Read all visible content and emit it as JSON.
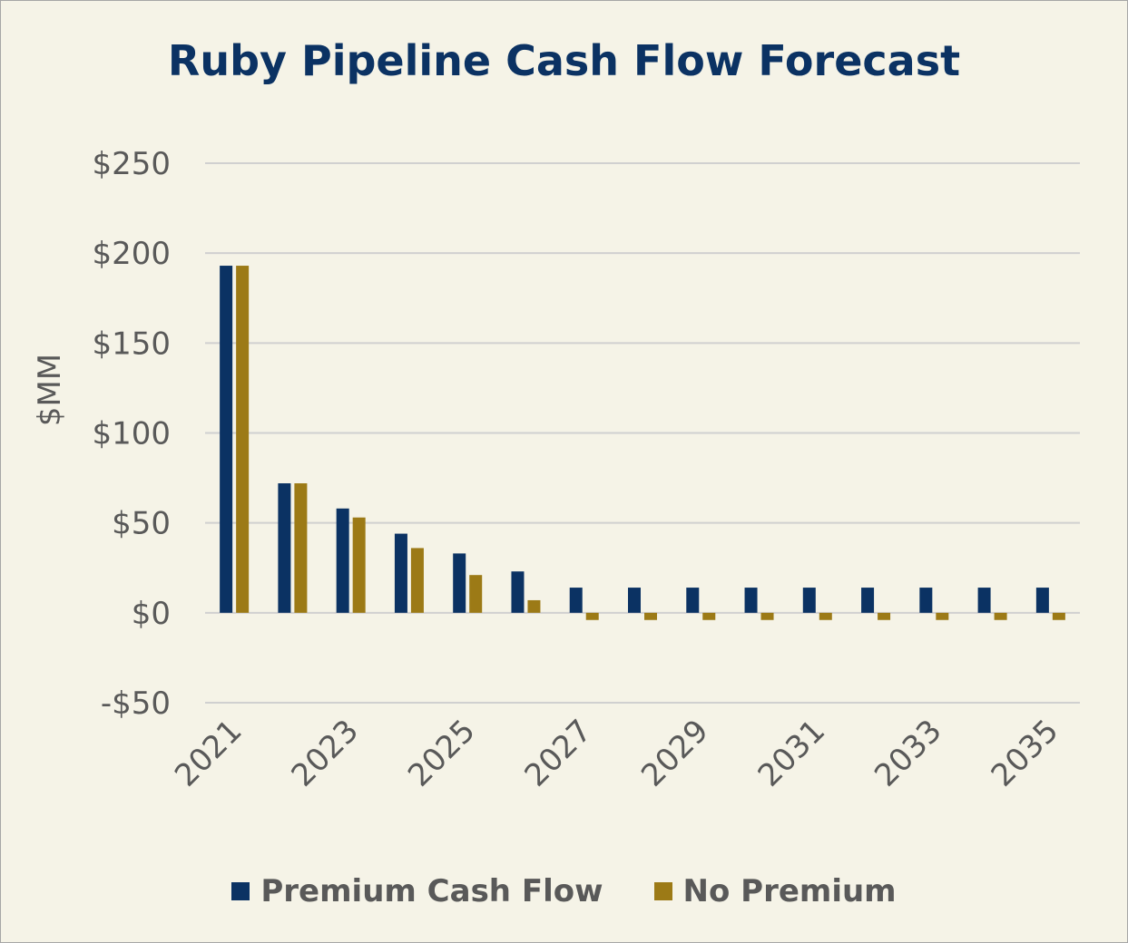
{
  "chart_data": {
    "type": "bar",
    "title": "Ruby Pipeline Cash Flow Forecast",
    "ylabel": "$MM",
    "xlabel": "",
    "categories": [
      "2021",
      "2022",
      "2023",
      "2024",
      "2025",
      "2026",
      "2027",
      "2028",
      "2029",
      "2030",
      "2031",
      "2032",
      "2033",
      "2034",
      "2035"
    ],
    "x_tick_labels": [
      "2021",
      "",
      "2023",
      "",
      "2025",
      "",
      "2027",
      "",
      "2029",
      "",
      "2031",
      "",
      "2033",
      "",
      "2035"
    ],
    "y_tick_labels": [
      "-$50",
      "$0",
      "$50",
      "$100",
      "$150",
      "$200",
      "$250"
    ],
    "y_ticks": [
      -50,
      0,
      50,
      100,
      150,
      200,
      250
    ],
    "ylim": [
      -50,
      250
    ],
    "grid": true,
    "legend_position": "bottom",
    "series": [
      {
        "name": "Premium Cash Flow",
        "color": "#0b3263",
        "values": [
          193,
          72,
          58,
          44,
          33,
          23,
          14,
          14,
          14,
          14,
          14,
          14,
          14,
          14,
          14
        ]
      },
      {
        "name": "No Premium",
        "color": "#9c7a16",
        "values": [
          193,
          72,
          53,
          36,
          21,
          7,
          -4,
          -4,
          -4,
          -4,
          -4,
          -4,
          -4,
          -4,
          -4
        ]
      }
    ]
  }
}
